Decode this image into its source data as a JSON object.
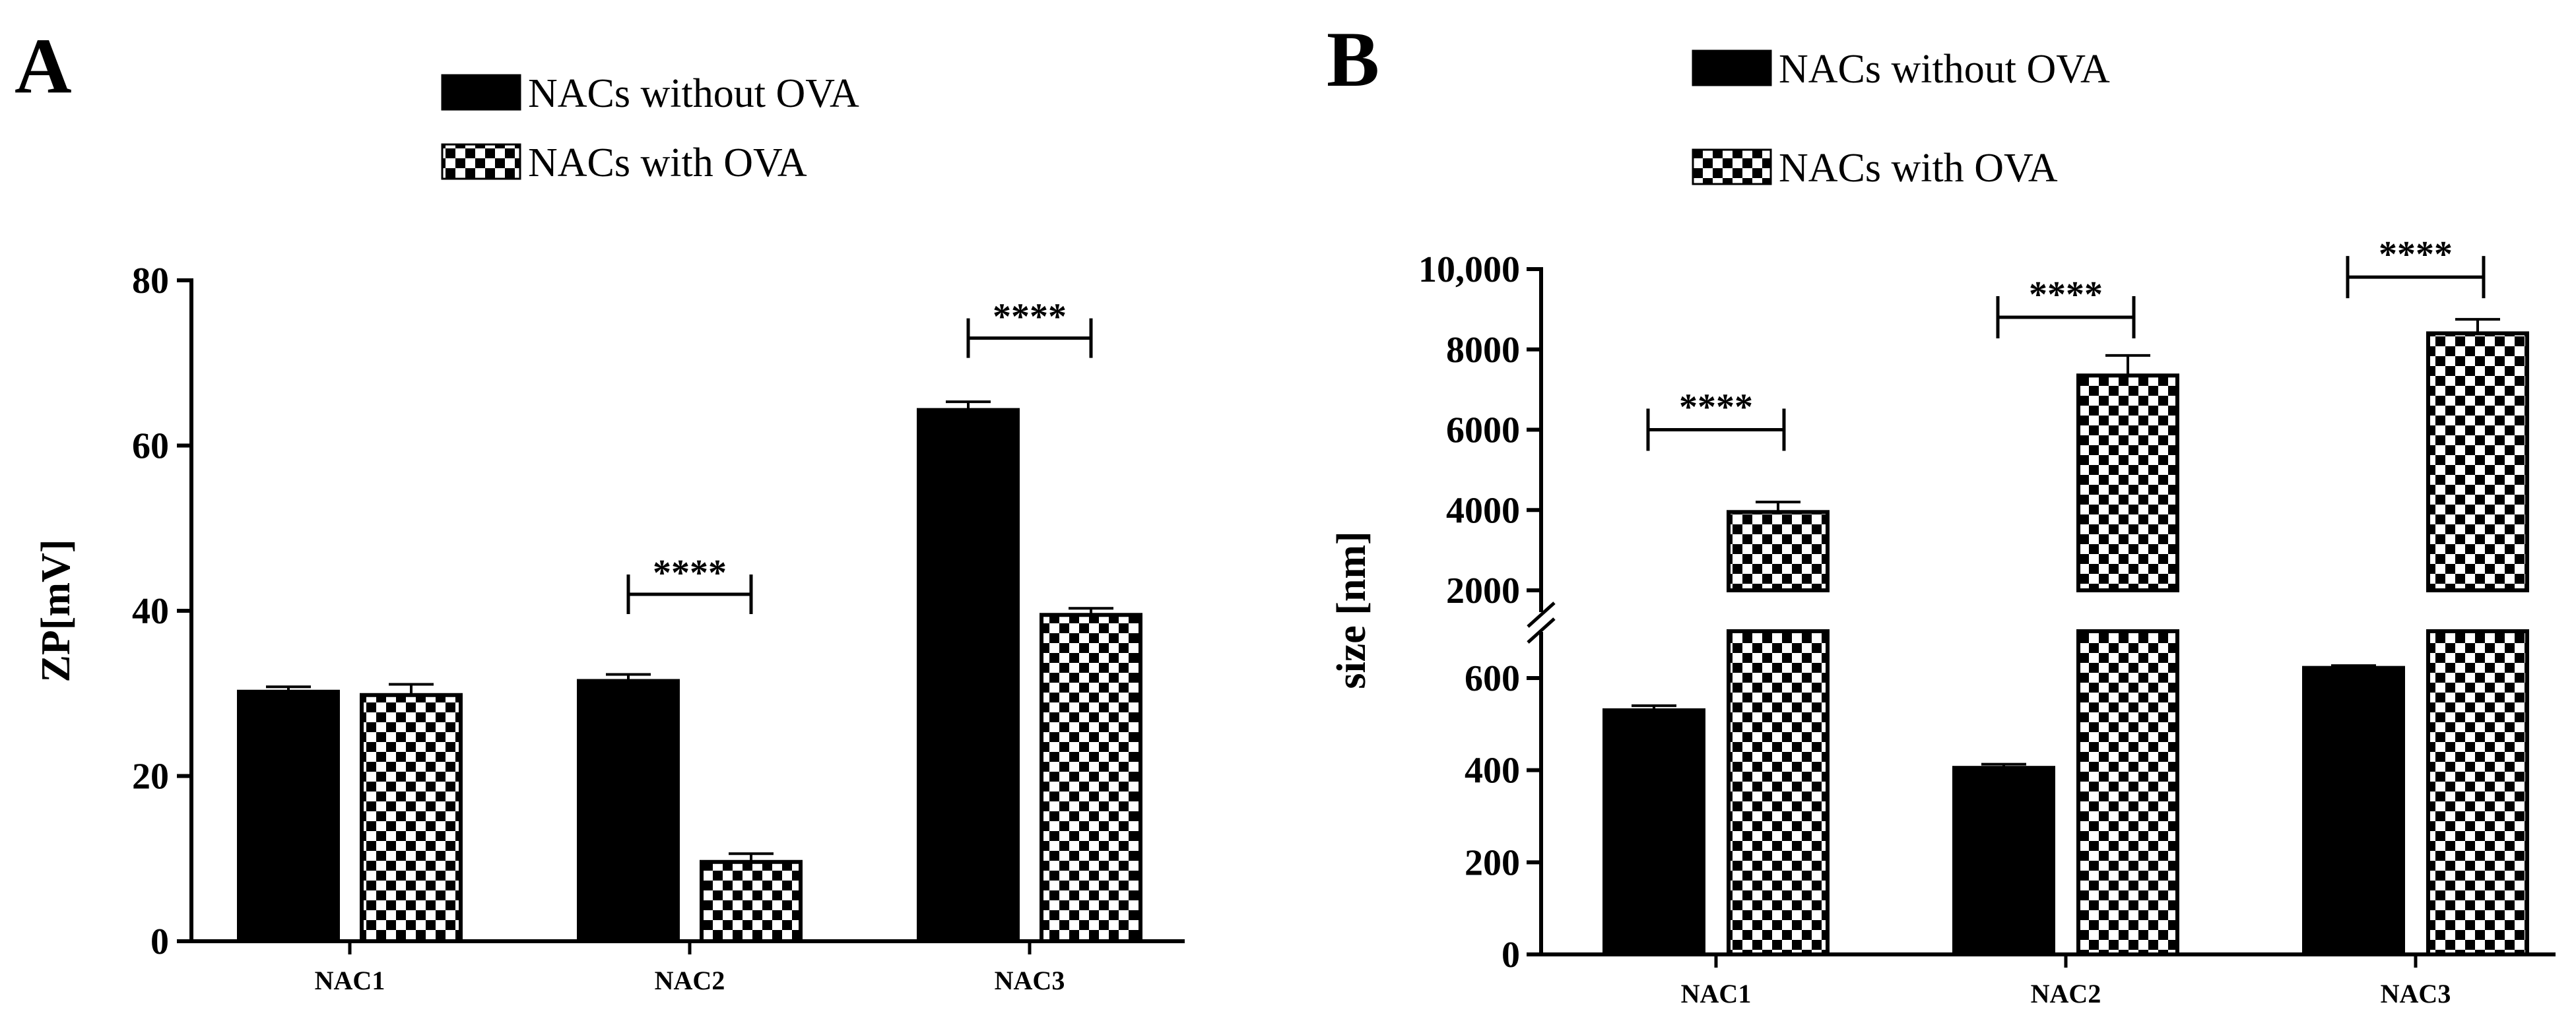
{
  "chart_data": [
    {
      "panel": "A",
      "type": "bar",
      "title": "",
      "xlabel": "",
      "ylabel": "ZP[mV]",
      "ylim": [
        0,
        80
      ],
      "yticks": [
        0,
        20,
        40,
        60,
        80
      ],
      "ytick_labels": [
        "0",
        "20",
        "40",
        "60",
        "80"
      ],
      "categories": [
        "NAC1",
        "NAC2",
        "NAC3"
      ],
      "series": [
        {
          "name": "NACs without OVA",
          "pattern": "solid",
          "values": [
            30.2,
            31.5,
            64.3
          ],
          "errors": [
            0.6,
            0.8,
            1.0
          ]
        },
        {
          "name": "NACs with OVA",
          "pattern": "checker",
          "values": [
            29.8,
            9.6,
            39.5
          ],
          "errors": [
            1.3,
            1.0,
            0.8
          ]
        }
      ],
      "significance": [
        {
          "category": "NAC2",
          "label": "****",
          "y": 42
        },
        {
          "category": "NAC3",
          "label": "****",
          "y": 73
        }
      ],
      "legend_position": "top"
    },
    {
      "panel": "B",
      "type": "bar",
      "title": "",
      "xlabel": "",
      "ylabel": "size [nm]",
      "broken_axis": {
        "lower_range": [
          0,
          700
        ],
        "upper_range": [
          2000,
          10000
        ]
      },
      "ylim": [
        0,
        10000
      ],
      "yticks": [
        0,
        200,
        400,
        600,
        2000,
        4000,
        6000,
        8000,
        10000
      ],
      "ytick_labels": [
        "0",
        "200",
        "400",
        "600",
        "2000",
        "4000",
        "6000",
        "8000",
        "10,000"
      ],
      "categories": [
        "NAC1",
        "NAC2",
        "NAC3"
      ],
      "series": [
        {
          "name": "NACs without OVA",
          "pattern": "solid",
          "values": [
            530,
            405,
            622
          ],
          "errors": [
            10,
            8,
            5
          ]
        },
        {
          "name": "NACs  with OVA",
          "pattern": "checker",
          "values": [
            3950,
            7350,
            8400
          ],
          "errors": [
            250,
            500,
            350
          ]
        }
      ],
      "significance": [
        {
          "category": "NAC1",
          "label": "****",
          "y": 6000
        },
        {
          "category": "NAC2",
          "label": "****",
          "y": 8800
        },
        {
          "category": "NAC3",
          "label": "****",
          "y": 9800
        }
      ],
      "legend_position": "top"
    }
  ]
}
